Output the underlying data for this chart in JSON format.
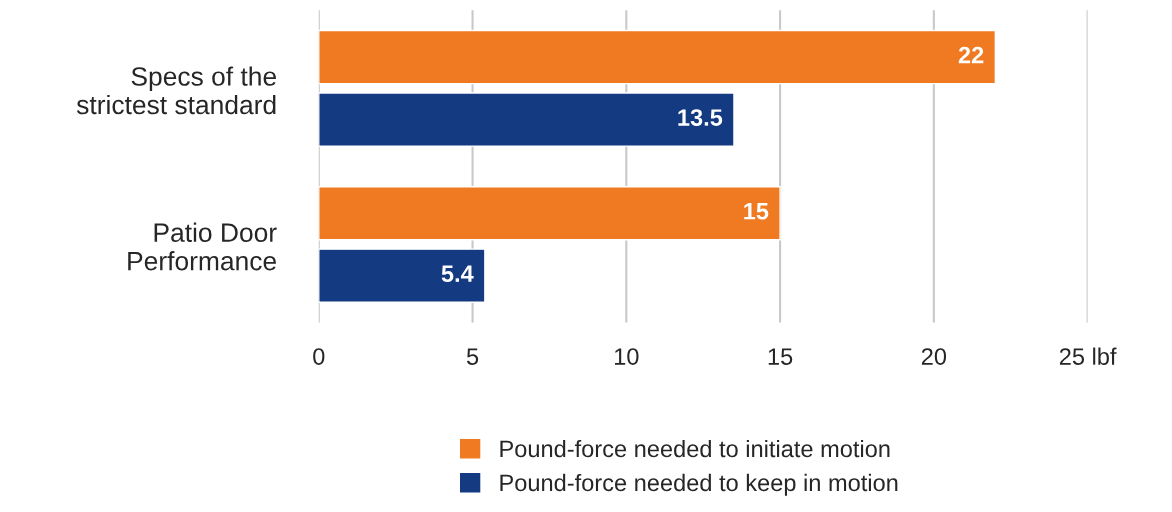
{
  "chart_data": {
    "type": "bar",
    "orientation": "horizontal",
    "categories": [
      "Specs of the\nstrictest standard",
      "Patio Door\nPerformance"
    ],
    "series": [
      {
        "name": "Pound-force needed to initiate motion",
        "color": "#f07a22",
        "values": [
          22,
          15
        ]
      },
      {
        "name": "Pound-force needed to keep in motion",
        "color": "#143a82",
        "values": [
          13.5,
          5.4
        ]
      }
    ],
    "data_labels": true,
    "xlim": [
      0,
      25
    ],
    "xticks": [
      0,
      5,
      10,
      15,
      20,
      {
        "value": 25,
        "label": "25 lbf"
      }
    ],
    "grid": "x",
    "legend": "bottom"
  }
}
